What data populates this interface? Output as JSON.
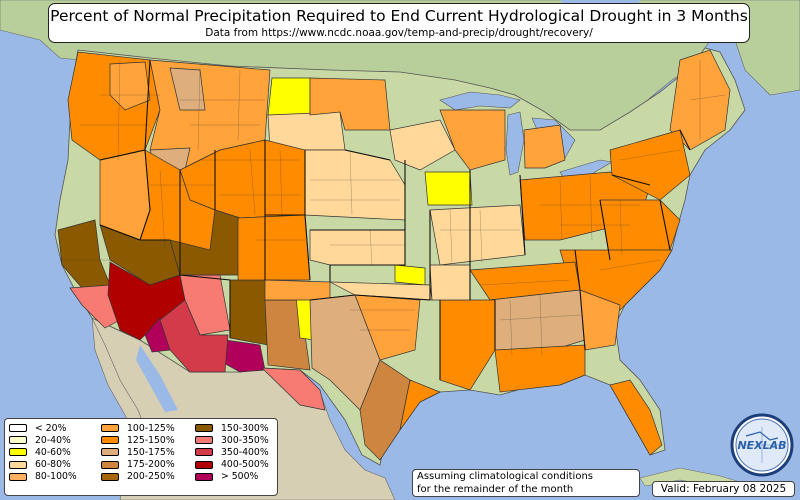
{
  "title": "Percent of Normal Precipitation Required to End Current Hydrological Drought in 3 Months",
  "subtitle": "Data from https://www.ncdc.noaa.gov/temp-and-precip/drought/recovery/",
  "legend": [
    {
      "label": "< 20%",
      "color": "#ffffff"
    },
    {
      "label": "20-40%",
      "color": "#ffffcc"
    },
    {
      "label": "40-60%",
      "color": "#ffff00"
    },
    {
      "label": "60-80%",
      "color": "#ffd89a"
    },
    {
      "label": "80-100%",
      "color": "#ffb060"
    },
    {
      "label": "100-125%",
      "color": "#ffa33a"
    },
    {
      "label": "125-150%",
      "color": "#ff8c00"
    },
    {
      "label": "150-175%",
      "color": "#deae7c"
    },
    {
      "label": "175-200%",
      "color": "#cd853f"
    },
    {
      "label": "200-250%",
      "color": "#a8660a"
    },
    {
      "label": "150-300%",
      "color": "#8b5a00"
    },
    {
      "label": "300-350%",
      "color": "#f77b72"
    },
    {
      "label": "350-400%",
      "color": "#d33a4a"
    },
    {
      "label": "400-500%",
      "color": "#b00000"
    },
    {
      "label": "> 500%",
      "color": "#b0005a"
    }
  ],
  "note_line1": "Assuming climatological conditions",
  "note_line2": "for the remainder of the month",
  "valid": "Valid: February 08 2025",
  "logo_text": "NEXLAB",
  "colors": {
    "water": "#9bb9e6",
    "land": "#c8d9a6",
    "mexico": "#d7cfb4",
    "canada": "#b8cf9c"
  }
}
